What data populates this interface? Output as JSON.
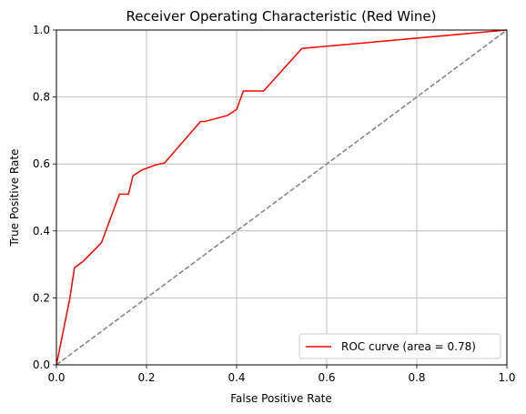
{
  "chart_data": {
    "type": "line",
    "title": "Receiver Operating Characteristic (Red Wine)",
    "xlabel": "False Positive Rate",
    "ylabel": "True Positive Rate",
    "xlim": [
      0.0,
      1.0
    ],
    "ylim": [
      0.0,
      1.0
    ],
    "grid": true,
    "legend_position": "lower-right",
    "x_ticks": [
      "0.0",
      "0.2",
      "0.4",
      "0.6",
      "0.8",
      "1.0"
    ],
    "y_ticks": [
      "0.0",
      "0.2",
      "0.4",
      "0.6",
      "0.8",
      "1.0"
    ],
    "series": [
      {
        "name": "ROC curve (area = 0.78)",
        "color": "#ff0000",
        "style": "solid",
        "x": [
          0.0,
          0.03,
          0.04,
          0.06,
          0.1,
          0.14,
          0.16,
          0.17,
          0.19,
          0.22,
          0.24,
          0.32,
          0.33,
          0.38,
          0.4,
          0.415,
          0.46,
          0.545,
          1.0
        ],
        "y": [
          0.0,
          0.2,
          0.29,
          0.31,
          0.365,
          0.51,
          0.51,
          0.565,
          0.582,
          0.597,
          0.603,
          0.727,
          0.727,
          0.745,
          0.763,
          0.818,
          0.818,
          0.945,
          1.0
        ]
      },
      {
        "name": "",
        "color": "#808080",
        "style": "dashed",
        "x": [
          0.0,
          1.0
        ],
        "y": [
          0.0,
          1.0
        ]
      }
    ]
  }
}
